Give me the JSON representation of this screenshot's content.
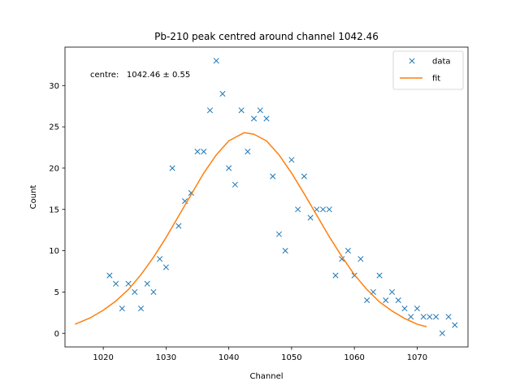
{
  "chart_data": {
    "type": "scatter",
    "title": "Pb-210 peak centred around channel 1042.46",
    "xlabel": "Channel",
    "ylabel": "Count",
    "xlim": [
      1013.9,
      1078.1
    ],
    "ylim": [
      -1.65,
      34.65
    ],
    "xticks": [
      1020,
      1030,
      1040,
      1050,
      1060,
      1070
    ],
    "yticks": [
      0,
      5,
      10,
      15,
      20,
      25,
      30
    ],
    "grid": false,
    "legend_placement": "top-right",
    "annotation": "centre:   1042.46 ± 0.55",
    "colors": {
      "data": "#1f77b4",
      "fit": "#ff7f0e",
      "axes": "#000000"
    },
    "series": [
      {
        "name": "data",
        "style": "markers-x",
        "x": [
          1021,
          1022,
          1023,
          1024,
          1025,
          1026,
          1027,
          1028,
          1029,
          1030,
          1031,
          1032,
          1033,
          1034,
          1035,
          1036,
          1037,
          1038,
          1039,
          1040,
          1041,
          1042,
          1043,
          1044,
          1045,
          1046,
          1047,
          1048,
          1049,
          1050,
          1051,
          1052,
          1053,
          1054,
          1055,
          1056,
          1057,
          1058,
          1059,
          1060,
          1061,
          1062,
          1063,
          1064,
          1065,
          1066,
          1067,
          1068,
          1069,
          1070,
          1071,
          1072,
          1073,
          1074,
          1075,
          1076
        ],
        "y": [
          7,
          6,
          3,
          6,
          5,
          3,
          6,
          5,
          9,
          8,
          20,
          13,
          16,
          17,
          22,
          22,
          27,
          33,
          29,
          20,
          18,
          27,
          22,
          26,
          27,
          26,
          19,
          12,
          10,
          21,
          15,
          19,
          14,
          15,
          15,
          15,
          7,
          9,
          10,
          7,
          9,
          4,
          5,
          7,
          4,
          5,
          4,
          3,
          2,
          3,
          2,
          2,
          2,
          0,
          2,
          1
        ]
      },
      {
        "name": "fit",
        "style": "line",
        "x": [
          1015.5,
          1018,
          1020,
          1022,
          1024,
          1026,
          1028,
          1030,
          1032,
          1034,
          1036,
          1038,
          1040,
          1042.46,
          1044,
          1046,
          1048,
          1050,
          1052,
          1054,
          1056,
          1058,
          1060,
          1062,
          1064,
          1066,
          1068,
          1070,
          1071.5
        ],
        "y": [
          1.1,
          1.9,
          2.8,
          3.9,
          5.3,
          7.1,
          9.2,
          11.6,
          14.2,
          16.8,
          19.4,
          21.6,
          23.3,
          24.3,
          24.1,
          23.3,
          21.6,
          19.4,
          16.9,
          14.3,
          11.7,
          9.3,
          7.1,
          5.3,
          3.8,
          2.7,
          1.8,
          1.1,
          0.8
        ]
      }
    ]
  }
}
